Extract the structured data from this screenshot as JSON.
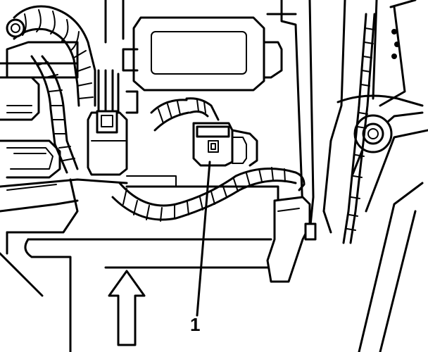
{
  "callouts": [
    {
      "label": "1",
      "target": "electrical-connector"
    }
  ],
  "arrow": {
    "direction": "up",
    "meaning": "vehicle-front"
  },
  "colors": {
    "line": "#000000",
    "background": "#ffffff"
  }
}
